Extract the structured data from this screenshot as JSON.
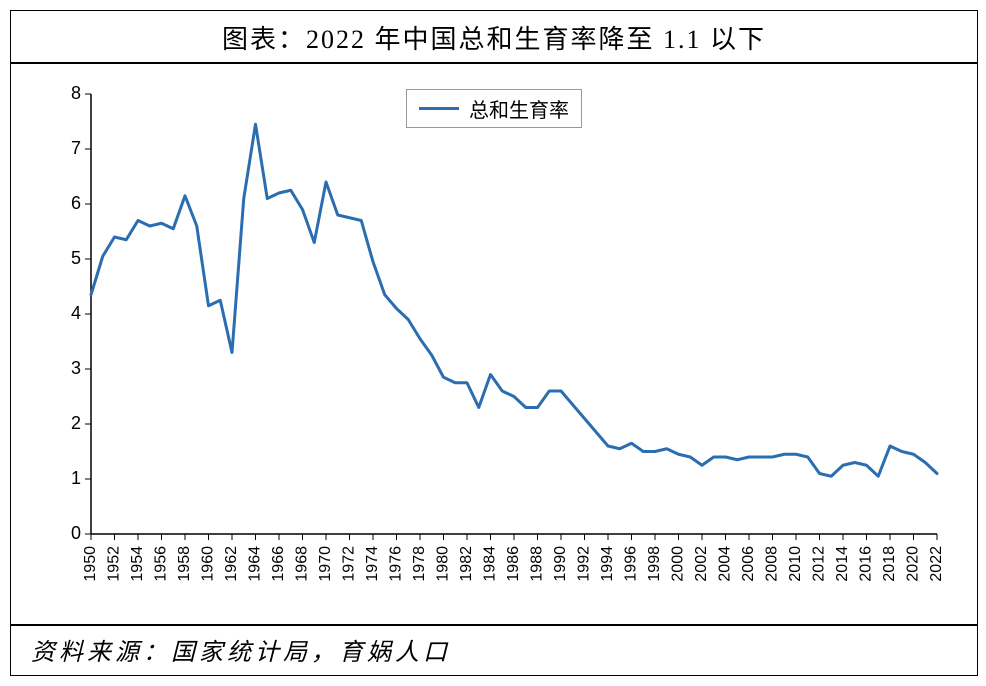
{
  "title": "图表：2022 年中国总和生育率降至 1.1 以下",
  "footer": "资料来源：国家统计局，育娲人口",
  "chart": {
    "type": "line",
    "legend_label": "总和生育率",
    "line_color": "#2a6db0",
    "line_width": 3,
    "background_color": "#ffffff",
    "axis_color": "#000000",
    "ylim": [
      0,
      8
    ],
    "ytick_step": 1,
    "xlim": [
      1950,
      2022
    ],
    "xtick_step": 2,
    "xtick_labels": [
      1950,
      1952,
      1954,
      1956,
      1958,
      1960,
      1962,
      1964,
      1966,
      1968,
      1970,
      1972,
      1974,
      1976,
      1978,
      1980,
      1982,
      1984,
      1986,
      1988,
      1990,
      1992,
      1994,
      1996,
      1998,
      2000,
      2002,
      2004,
      2006,
      2008,
      2010,
      2012,
      2014,
      2016,
      2018,
      2020,
      2022
    ],
    "title_fontsize": 26,
    "label_fontsize": 18,
    "footer_fontsize": 24,
    "legend_fontsize": 20,
    "series": {
      "years": [
        1950,
        1951,
        1952,
        1953,
        1954,
        1955,
        1956,
        1957,
        1958,
        1959,
        1960,
        1961,
        1962,
        1963,
        1964,
        1965,
        1966,
        1967,
        1968,
        1969,
        1970,
        1971,
        1972,
        1973,
        1974,
        1975,
        1976,
        1977,
        1978,
        1979,
        1980,
        1981,
        1982,
        1983,
        1984,
        1985,
        1986,
        1987,
        1988,
        1989,
        1990,
        1991,
        1992,
        1993,
        1994,
        1995,
        1996,
        1997,
        1998,
        1999,
        2000,
        2001,
        2002,
        2003,
        2004,
        2005,
        2006,
        2007,
        2008,
        2009,
        2010,
        2011,
        2012,
        2013,
        2014,
        2015,
        2016,
        2017,
        2018,
        2019,
        2020,
        2021,
        2022
      ],
      "values": [
        4.35,
        5.05,
        5.4,
        5.35,
        5.7,
        5.6,
        5.65,
        5.55,
        6.15,
        5.6,
        4.15,
        4.25,
        3.3,
        6.1,
        7.45,
        6.1,
        6.2,
        6.25,
        5.9,
        5.3,
        6.4,
        5.8,
        5.75,
        5.7,
        4.95,
        4.35,
        4.1,
        3.9,
        3.55,
        3.25,
        2.85,
        2.75,
        2.75,
        2.3,
        2.9,
        2.6,
        2.5,
        2.3,
        2.3,
        2.6,
        2.6,
        2.35,
        2.1,
        1.85,
        1.6,
        1.55,
        1.65,
        1.5,
        1.5,
        1.55,
        1.45,
        1.4,
        1.25,
        1.4,
        1.4,
        1.35,
        1.4,
        1.4,
        1.4,
        1.45,
        1.45,
        1.4,
        1.1,
        1.05,
        1.25,
        1.3,
        1.25,
        1.05,
        1.6,
        1.5,
        1.45,
        1.3,
        1.1
      ]
    }
  }
}
